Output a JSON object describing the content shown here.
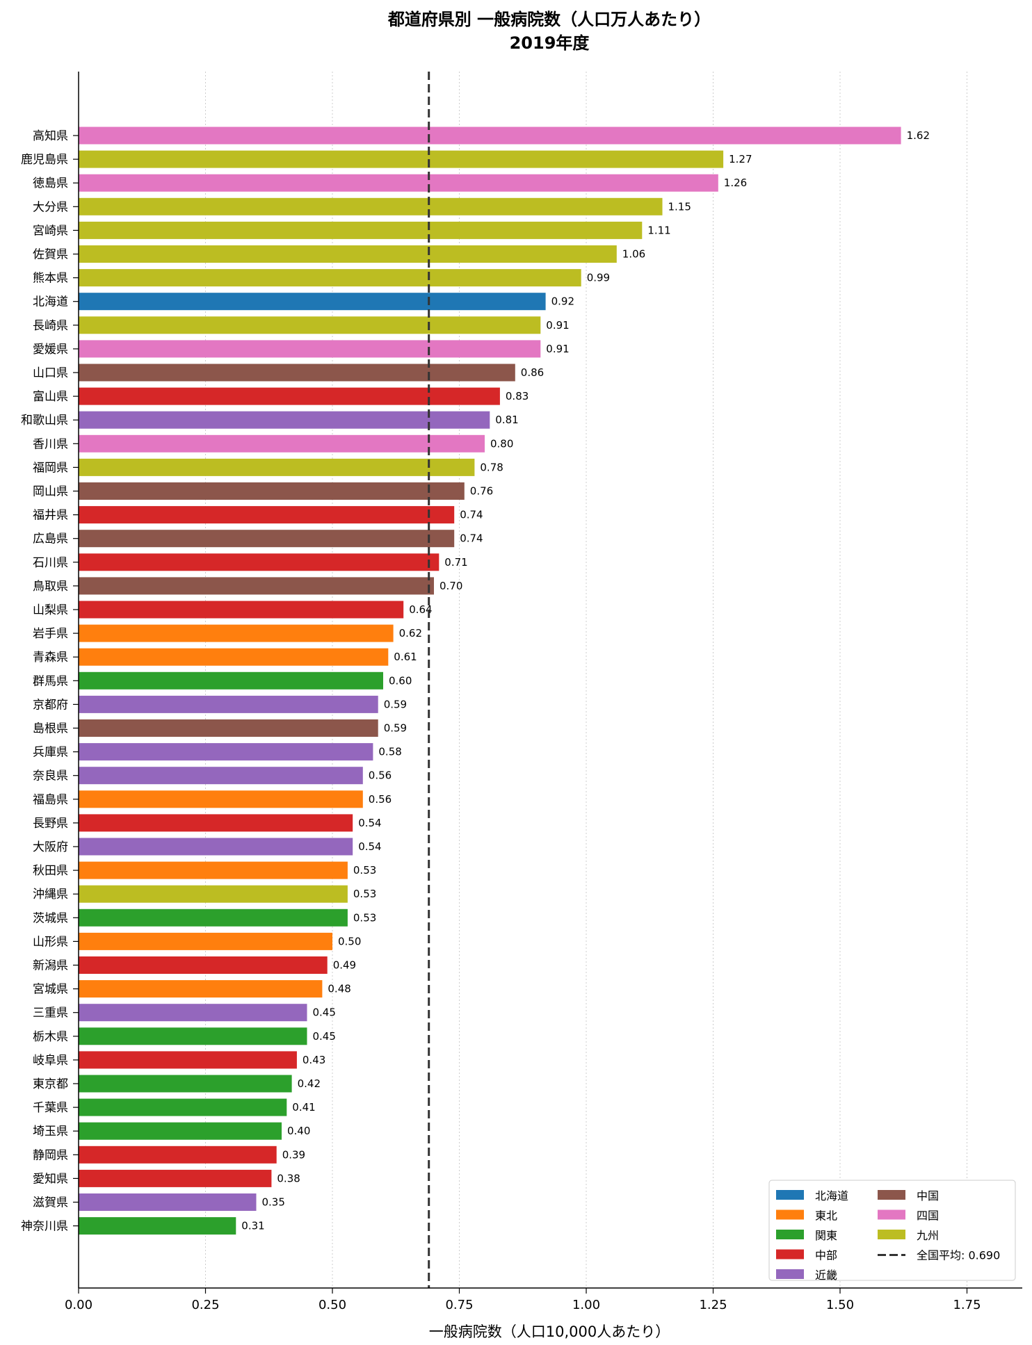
{
  "chart_data": {
    "type": "bar",
    "orientation": "horizontal",
    "title": "都道府県別 一般病院数（人口万人あたり）",
    "subtitle": "2019年度",
    "xlabel": "一般病院数（人口10,000人あたり）",
    "ylabel": "",
    "xlim": [
      0,
      1.85
    ],
    "xticks": [
      "0.00",
      "0.25",
      "0.50",
      "0.75",
      "1.00",
      "1.25",
      "1.50",
      "1.75"
    ],
    "grid": "vertical dotted",
    "legend_position": "bottom-right",
    "reference_line": {
      "label": "全国平均: 0.690",
      "value": 0.69
    },
    "region_colors": {
      "北海道": "#1f77b4",
      "東北": "#ff7f0e",
      "関東": "#2ca02c",
      "中部": "#d62728",
      "近畿": "#9467bd",
      "中国": "#8c564b",
      "四国": "#e377c2",
      "九州": "#bcbd22"
    },
    "legend": [
      "北海道",
      "東北",
      "関東",
      "中部",
      "近畿",
      "中国",
      "四国",
      "九州"
    ],
    "bars": [
      {
        "label": "高知県",
        "value": 1.62,
        "value_label": "1.62",
        "region": "四国"
      },
      {
        "label": "鹿児島県",
        "value": 1.27,
        "value_label": "1.27",
        "region": "九州"
      },
      {
        "label": "徳島県",
        "value": 1.26,
        "value_label": "1.26",
        "region": "四国"
      },
      {
        "label": "大分県",
        "value": 1.15,
        "value_label": "1.15",
        "region": "九州"
      },
      {
        "label": "宮崎県",
        "value": 1.11,
        "value_label": "1.11",
        "region": "九州"
      },
      {
        "label": "佐賀県",
        "value": 1.06,
        "value_label": "1.06",
        "region": "九州"
      },
      {
        "label": "熊本県",
        "value": 0.99,
        "value_label": "0.99",
        "region": "九州"
      },
      {
        "label": "北海道",
        "value": 0.92,
        "value_label": "0.92",
        "region": "北海道"
      },
      {
        "label": "長崎県",
        "value": 0.91,
        "value_label": "0.91",
        "region": "九州"
      },
      {
        "label": "愛媛県",
        "value": 0.91,
        "value_label": "0.91",
        "region": "四国"
      },
      {
        "label": "山口県",
        "value": 0.86,
        "value_label": "0.86",
        "region": "中国"
      },
      {
        "label": "富山県",
        "value": 0.83,
        "value_label": "0.83",
        "region": "中部"
      },
      {
        "label": "和歌山県",
        "value": 0.81,
        "value_label": "0.81",
        "region": "近畿"
      },
      {
        "label": "香川県",
        "value": 0.8,
        "value_label": "0.80",
        "region": "四国"
      },
      {
        "label": "福岡県",
        "value": 0.78,
        "value_label": "0.78",
        "region": "九州"
      },
      {
        "label": "岡山県",
        "value": 0.76,
        "value_label": "0.76",
        "region": "中国"
      },
      {
        "label": "福井県",
        "value": 0.74,
        "value_label": "0.74",
        "region": "中部"
      },
      {
        "label": "広島県",
        "value": 0.74,
        "value_label": "0.74",
        "region": "中国"
      },
      {
        "label": "石川県",
        "value": 0.71,
        "value_label": "0.71",
        "region": "中部"
      },
      {
        "label": "鳥取県",
        "value": 0.7,
        "value_label": "0.70",
        "region": "中国"
      },
      {
        "label": "山梨県",
        "value": 0.64,
        "value_label": "0.64",
        "region": "中部"
      },
      {
        "label": "岩手県",
        "value": 0.62,
        "value_label": "0.62",
        "region": "東北"
      },
      {
        "label": "青森県",
        "value": 0.61,
        "value_label": "0.61",
        "region": "東北"
      },
      {
        "label": "群馬県",
        "value": 0.6,
        "value_label": "0.60",
        "region": "関東"
      },
      {
        "label": "京都府",
        "value": 0.59,
        "value_label": "0.59",
        "region": "近畿"
      },
      {
        "label": "島根県",
        "value": 0.59,
        "value_label": "0.59",
        "region": "中国"
      },
      {
        "label": "兵庫県",
        "value": 0.58,
        "value_label": "0.58",
        "region": "近畿"
      },
      {
        "label": "奈良県",
        "value": 0.56,
        "value_label": "0.56",
        "region": "近畿"
      },
      {
        "label": "福島県",
        "value": 0.56,
        "value_label": "0.56",
        "region": "東北"
      },
      {
        "label": "長野県",
        "value": 0.54,
        "value_label": "0.54",
        "region": "中部"
      },
      {
        "label": "大阪府",
        "value": 0.54,
        "value_label": "0.54",
        "region": "近畿"
      },
      {
        "label": "秋田県",
        "value": 0.53,
        "value_label": "0.53",
        "region": "東北"
      },
      {
        "label": "沖縄県",
        "value": 0.53,
        "value_label": "0.53",
        "region": "九州"
      },
      {
        "label": "茨城県",
        "value": 0.53,
        "value_label": "0.53",
        "region": "関東"
      },
      {
        "label": "山形県",
        "value": 0.5,
        "value_label": "0.50",
        "region": "東北"
      },
      {
        "label": "新潟県",
        "value": 0.49,
        "value_label": "0.49",
        "region": "中部"
      },
      {
        "label": "宮城県",
        "value": 0.48,
        "value_label": "0.48",
        "region": "東北"
      },
      {
        "label": "三重県",
        "value": 0.45,
        "value_label": "0.45",
        "region": "近畿"
      },
      {
        "label": "栃木県",
        "value": 0.45,
        "value_label": "0.45",
        "region": "関東"
      },
      {
        "label": "岐阜県",
        "value": 0.43,
        "value_label": "0.43",
        "region": "中部"
      },
      {
        "label": "東京都",
        "value": 0.42,
        "value_label": "0.42",
        "region": "関東"
      },
      {
        "label": "千葉県",
        "value": 0.41,
        "value_label": "0.41",
        "region": "関東"
      },
      {
        "label": "埼玉県",
        "value": 0.4,
        "value_label": "0.40",
        "region": "関東"
      },
      {
        "label": "静岡県",
        "value": 0.39,
        "value_label": "0.39",
        "region": "中部"
      },
      {
        "label": "愛知県",
        "value": 0.38,
        "value_label": "0.38",
        "region": "中部"
      },
      {
        "label": "滋賀県",
        "value": 0.35,
        "value_label": "0.35",
        "region": "近畿"
      },
      {
        "label": "神奈川県",
        "value": 0.31,
        "value_label": "0.31",
        "region": "関東"
      }
    ]
  }
}
